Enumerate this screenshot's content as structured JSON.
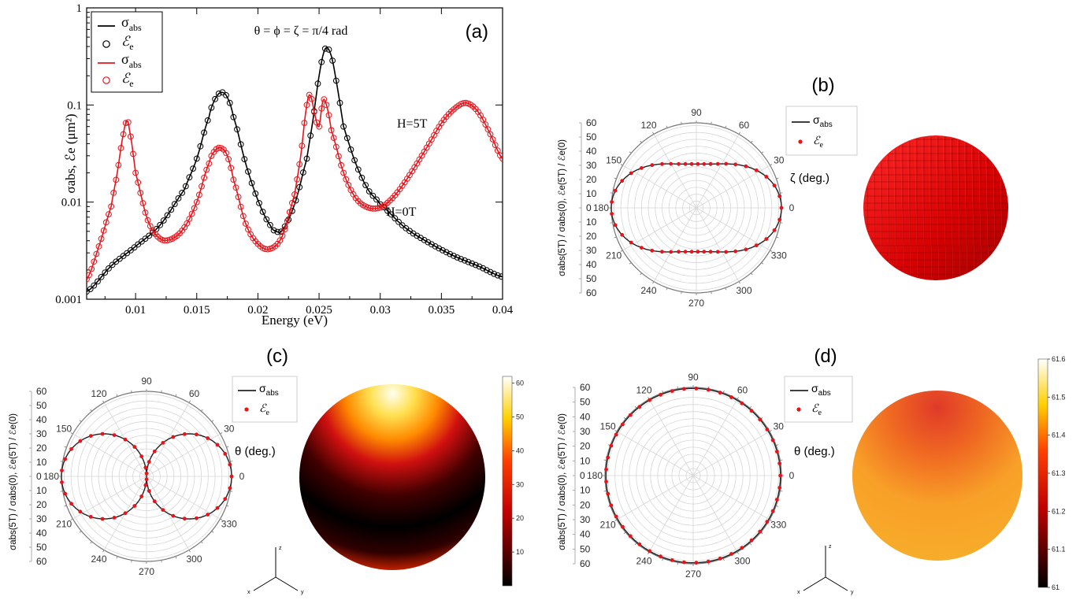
{
  "panels": {
    "a": {
      "label": "(a)",
      "title": "θ = ϕ = ζ = π/4 rad",
      "note_5T": "H=5T",
      "note_0T": "H=0T"
    },
    "b": {
      "label": "(b)",
      "angle_label": "ζ (deg.)",
      "object": "voxel-sphere"
    },
    "c": {
      "label": "(c)",
      "angle_label": "θ (deg.)",
      "axes3d": [
        "z",
        "x",
        "y"
      ]
    },
    "d": {
      "label": "(d)",
      "angle_label": "θ (deg.)",
      "axes3d": [
        "z",
        "x",
        "y"
      ]
    }
  },
  "legend": {
    "sigma": "σ",
    "sigma_sub": "abs",
    "eps": "ℰ",
    "eps_sub": "e"
  },
  "polar_ylabel": "σabs(5T) / σabs(0), ℰe(5T) / ℰe(0)",
  "colors": {
    "black": "#000000",
    "red": "#e8141b",
    "voxel": "#e00000"
  },
  "chart_data": [
    {
      "id": "a",
      "type": "line",
      "xlabel": "Energy (eV)",
      "ylabel": "σabs, ℰe (μm²)",
      "xlim": [
        0.006,
        0.04
      ],
      "ylim": [
        0.001,
        1
      ],
      "yscale": "log",
      "xticks": [
        0.01,
        0.015,
        0.02,
        0.025,
        0.03,
        0.035,
        0.04
      ],
      "xtick_labels": [
        "0.01",
        "0.015",
        "0.02",
        "0.025",
        "0.03",
        "0.035",
        "0.04"
      ],
      "yticks": [
        0.001,
        0.01,
        0.1,
        1
      ],
      "ytick_labels": [
        "0.001",
        "0.01",
        "0.1",
        "1"
      ],
      "legend_position": "top-left",
      "series": [
        {
          "name": "σabs",
          "color": "#000000",
          "marker": "line",
          "field": "H=0T",
          "x": [
            0.006,
            0.008,
            0.01,
            0.012,
            0.014,
            0.015,
            0.016,
            0.0165,
            0.017,
            0.0175,
            0.018,
            0.019,
            0.02,
            0.021,
            0.0215,
            0.022,
            0.023,
            0.024,
            0.0245,
            0.025,
            0.0255,
            0.026,
            0.0265,
            0.027,
            0.028,
            0.029,
            0.03,
            0.032,
            0.034,
            0.036,
            0.038,
            0.04
          ],
          "y": [
            0.0012,
            0.0022,
            0.0035,
            0.0058,
            0.0135,
            0.028,
            0.075,
            0.115,
            0.135,
            0.12,
            0.075,
            0.025,
            0.0105,
            0.0058,
            0.005,
            0.0052,
            0.0095,
            0.028,
            0.07,
            0.2,
            0.38,
            0.32,
            0.15,
            0.06,
            0.025,
            0.0135,
            0.0095,
            0.0055,
            0.0038,
            0.0028,
            0.0022,
            0.0017
          ]
        },
        {
          "name": "ℰe",
          "color": "#000000",
          "marker": "circle",
          "field": "H=0T",
          "x": [
            0.006,
            0.008,
            0.01,
            0.012,
            0.014,
            0.015,
            0.016,
            0.0165,
            0.017,
            0.0175,
            0.018,
            0.019,
            0.02,
            0.021,
            0.0215,
            0.022,
            0.023,
            0.024,
            0.0245,
            0.025,
            0.0255,
            0.026,
            0.0265,
            0.027,
            0.028,
            0.029,
            0.03,
            0.032,
            0.034,
            0.036,
            0.038,
            0.04
          ],
          "y": [
            0.0012,
            0.0022,
            0.0035,
            0.0058,
            0.0135,
            0.028,
            0.075,
            0.115,
            0.135,
            0.12,
            0.075,
            0.025,
            0.0105,
            0.0058,
            0.005,
            0.0052,
            0.0095,
            0.028,
            0.07,
            0.2,
            0.38,
            0.32,
            0.15,
            0.06,
            0.025,
            0.0135,
            0.0095,
            0.0055,
            0.0038,
            0.0028,
            0.0022,
            0.0017
          ]
        },
        {
          "name": "σabs",
          "color": "#e8141b",
          "marker": "line",
          "field": "H=5T",
          "x": [
            0.006,
            0.007,
            0.008,
            0.0085,
            0.009,
            0.0093,
            0.0095,
            0.01,
            0.011,
            0.012,
            0.013,
            0.014,
            0.015,
            0.016,
            0.0165,
            0.017,
            0.0175,
            0.018,
            0.019,
            0.02,
            0.021,
            0.022,
            0.023,
            0.0235,
            0.024,
            0.0243,
            0.0247,
            0.025,
            0.0253,
            0.0256,
            0.026,
            0.027,
            0.028,
            0.029,
            0.03,
            0.031,
            0.032,
            0.033,
            0.034,
            0.035,
            0.036,
            0.037,
            0.038,
            0.039,
            0.04
          ],
          "y": [
            0.0016,
            0.0035,
            0.009,
            0.02,
            0.05,
            0.068,
            0.055,
            0.02,
            0.0065,
            0.0042,
            0.0042,
            0.0055,
            0.01,
            0.025,
            0.034,
            0.036,
            0.03,
            0.017,
            0.006,
            0.0037,
            0.0033,
            0.0045,
            0.012,
            0.03,
            0.1,
            0.125,
            0.075,
            0.06,
            0.11,
            0.1,
            0.055,
            0.02,
            0.011,
            0.0088,
            0.0088,
            0.011,
            0.016,
            0.025,
            0.04,
            0.065,
            0.09,
            0.105,
            0.085,
            0.05,
            0.028
          ]
        },
        {
          "name": "ℰe",
          "color": "#e8141b",
          "marker": "circle",
          "field": "H=5T",
          "x": [
            0.006,
            0.007,
            0.008,
            0.0085,
            0.009,
            0.0093,
            0.0095,
            0.01,
            0.011,
            0.012,
            0.013,
            0.014,
            0.015,
            0.016,
            0.0165,
            0.017,
            0.0175,
            0.018,
            0.019,
            0.02,
            0.021,
            0.022,
            0.023,
            0.0235,
            0.024,
            0.0243,
            0.0247,
            0.025,
            0.0253,
            0.0256,
            0.026,
            0.027,
            0.028,
            0.029,
            0.03,
            0.031,
            0.032,
            0.033,
            0.034,
            0.035,
            0.036,
            0.037,
            0.038,
            0.039,
            0.04
          ],
          "y": [
            0.0016,
            0.0035,
            0.009,
            0.02,
            0.05,
            0.068,
            0.055,
            0.02,
            0.0065,
            0.0042,
            0.0042,
            0.0055,
            0.01,
            0.025,
            0.034,
            0.036,
            0.03,
            0.017,
            0.006,
            0.0037,
            0.0033,
            0.0045,
            0.012,
            0.03,
            0.1,
            0.125,
            0.075,
            0.06,
            0.11,
            0.1,
            0.055,
            0.02,
            0.011,
            0.0088,
            0.0088,
            0.011,
            0.016,
            0.025,
            0.04,
            0.065,
            0.09,
            0.105,
            0.085,
            0.05,
            0.028
          ]
        }
      ]
    },
    {
      "id": "b",
      "type": "polar",
      "shape": "peanut",
      "angle_ticks": [
        0,
        30,
        60,
        90,
        120,
        150,
        180,
        210,
        240,
        270,
        300,
        330
      ],
      "radial_ticks": [
        10,
        20,
        30,
        40,
        50,
        60
      ],
      "rlim": [
        0,
        62
      ],
      "r_at_0deg": 62,
      "r_at_90deg": 32,
      "series": [
        {
          "name": "σabs",
          "color": "#000000"
        },
        {
          "name": "ℰe",
          "color": "#e8141b"
        }
      ]
    },
    {
      "id": "c",
      "type": "polar",
      "shape": "figure-eight",
      "angle_ticks": [
        0,
        30,
        60,
        90,
        120,
        150,
        180,
        210,
        240,
        270,
        300,
        330
      ],
      "radial_ticks": [
        10,
        20,
        30,
        40,
        50,
        60
      ],
      "rlim": [
        0,
        62
      ],
      "r_at_0deg": 62,
      "r_at_90deg": 0,
      "series": [
        {
          "name": "σabs",
          "color": "#000000"
        },
        {
          "name": "ℰe",
          "color": "#e8141b"
        }
      ]
    },
    {
      "id": "d",
      "type": "polar",
      "shape": "circle",
      "angle_ticks": [
        0,
        30,
        60,
        90,
        120,
        150,
        180,
        210,
        240,
        270,
        300,
        330
      ],
      "radial_ticks": [
        10,
        20,
        30,
        40,
        50,
        60
      ],
      "rlim": [
        0,
        62
      ],
      "r_at_0deg": 61.3,
      "r_at_90deg": 61.3,
      "series": [
        {
          "name": "σabs",
          "color": "#000000"
        },
        {
          "name": "ℰe",
          "color": "#e8141b"
        }
      ]
    },
    {
      "id": "c-colorbar",
      "type": "heatmap",
      "colormap": "hot",
      "range": [
        0,
        62
      ],
      "ticks": [
        10,
        20,
        30,
        40,
        50,
        60
      ],
      "tick_labels": [
        "10",
        "20",
        "30",
        "40",
        "50",
        "60"
      ]
    },
    {
      "id": "d-colorbar",
      "type": "heatmap",
      "colormap": "hot",
      "range": [
        61,
        61.6
      ],
      "ticks": [
        61,
        61.1,
        61.2,
        61.3,
        61.4,
        61.5,
        61.6
      ],
      "tick_labels": [
        "61",
        "61.1",
        "61.2",
        "61.3",
        "61.4",
        "61.5",
        "61.6"
      ]
    }
  ]
}
